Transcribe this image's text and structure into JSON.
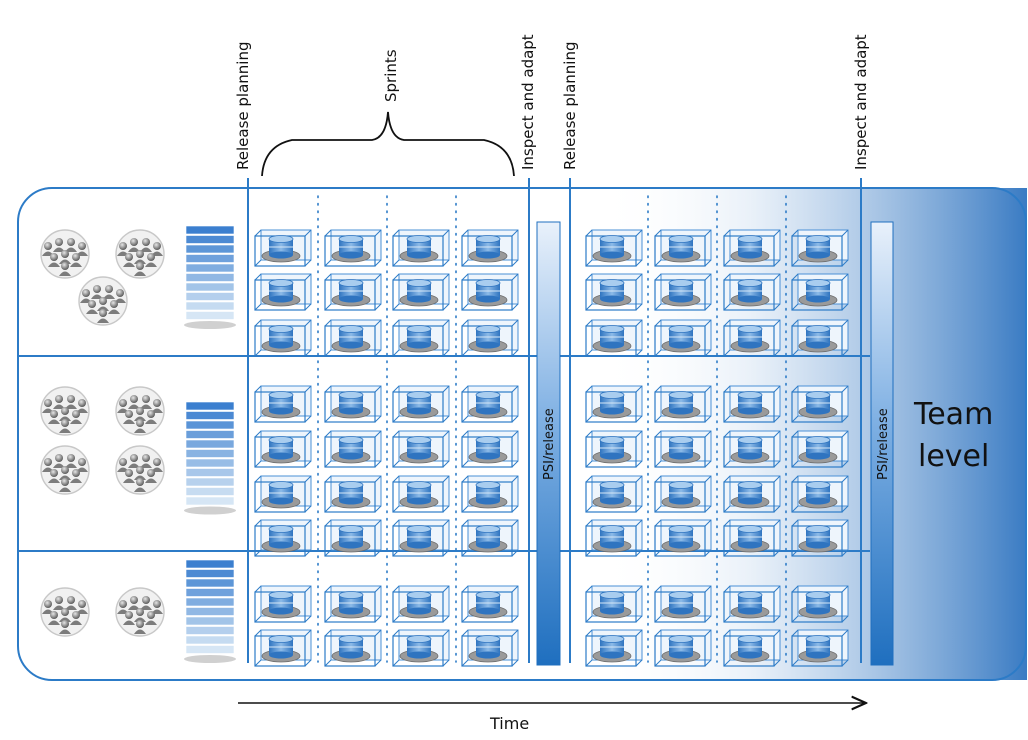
{
  "labels": {
    "release_planning_1": "Release planning",
    "inspect_adapt_1": "Inspect and adapt",
    "release_planning_2": "Release planning",
    "inspect_adapt_2": "Inspect and adapt",
    "sprints": "Sprints",
    "psi_release_1": "PSI/release",
    "psi_release_2": "PSI/release",
    "team_level_line1": "Team",
    "team_level_line2": "level",
    "time": "Time"
  },
  "structure": {
    "teams_per_row": [
      3,
      4,
      2
    ],
    "story_rows_per_lane": [
      3,
      4,
      2
    ],
    "sprints_per_release": 4,
    "releases": 2
  },
  "colors": {
    "frame": "#2c7bc7",
    "fade": "#2f74c0",
    "psi_top": "#e3eefa",
    "psi_bottom": "#1f6fbf",
    "story_blue": "#3e86d3",
    "team_gray": "#8a8a8a"
  }
}
